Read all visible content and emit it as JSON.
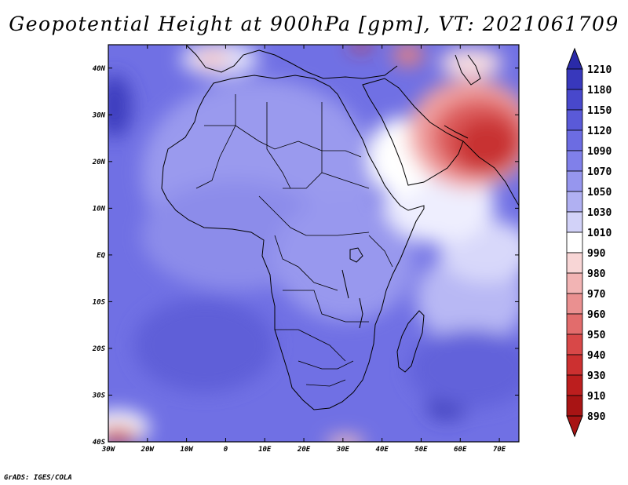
{
  "title": "Geopotential Height at 900hPa [gpm], VT: 2021061709",
  "credit": "GrADS: IGES/COLA",
  "map": {
    "lon_range": [
      -30,
      75
    ],
    "lat_range": [
      -40,
      45
    ],
    "lat_ticks": [
      "40N",
      "30N",
      "20N",
      "10N",
      "EQ",
      "10S",
      "20S",
      "30S",
      "40S"
    ],
    "lon_ticks": [
      "30W",
      "20W",
      "10W",
      "0",
      "10E",
      "20E",
      "30E",
      "40E",
      "50E",
      "60E",
      "70E"
    ],
    "background_color": "#6e6ee6"
  },
  "colorbar": {
    "levels": [
      "1210",
      "1180",
      "1150",
      "1120",
      "1090",
      "1070",
      "1050",
      "1030",
      "1010",
      "990",
      "980",
      "970",
      "960",
      "950",
      "940",
      "930",
      "910",
      "890"
    ],
    "colors": [
      "#2a2aa8",
      "#3838bc",
      "#4848cc",
      "#5a5ad8",
      "#6c6ce2",
      "#8080ea",
      "#9696ee",
      "#b0b0f2",
      "#d2d2f8",
      "#ffffff",
      "#f8d6d6",
      "#f2b4b4",
      "#ea9090",
      "#e26c6c",
      "#d84848",
      "#cc3030",
      "#bc1e1e",
      "#a81414"
    ]
  }
}
